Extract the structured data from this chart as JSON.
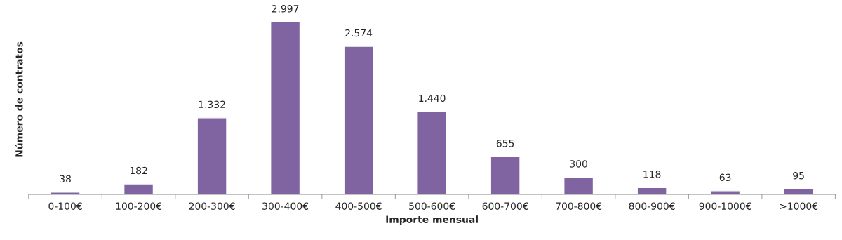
{
  "chart_data": {
    "type": "bar",
    "xlabel": "Importe mensual",
    "ylabel": "Número de contratos",
    "categories": [
      "0-100€",
      "100-200€",
      "200-300€",
      "300-400€",
      "400-500€",
      "500-600€",
      "600-700€",
      "700-800€",
      "800-900€",
      "900-1000€",
      ">1000€"
    ],
    "values": [
      38,
      182,
      1332,
      2997,
      2574,
      1440,
      655,
      300,
      118,
      63,
      95
    ],
    "value_labels": [
      "38",
      "182",
      "1.332",
      "2.997",
      "2.574",
      "1.440",
      "655",
      "300",
      "118",
      "63",
      "95"
    ],
    "color": "#8064a2",
    "grid": false,
    "legend": false
  }
}
